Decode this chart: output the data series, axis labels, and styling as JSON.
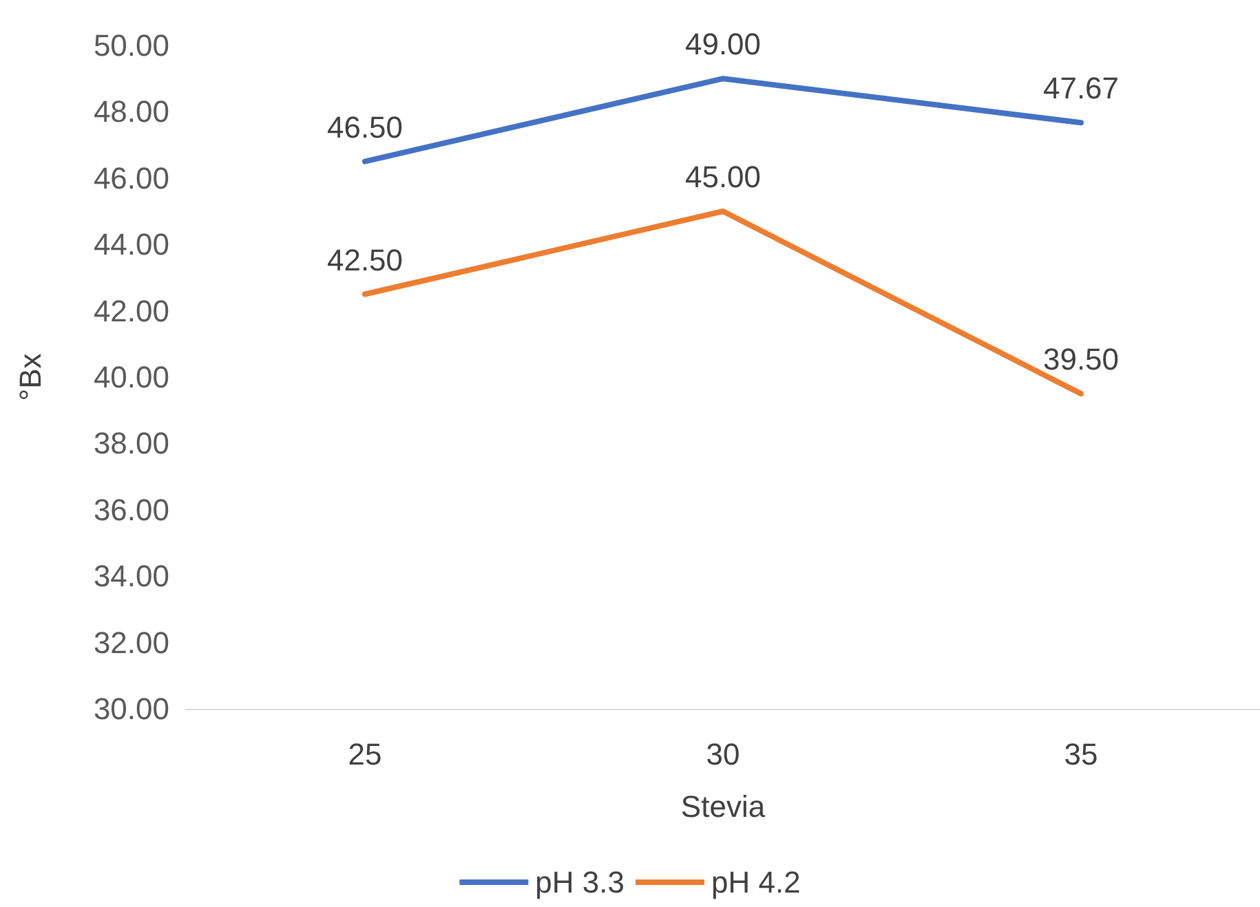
{
  "chart_data": {
    "type": "line",
    "xlabel": "Stevia",
    "ylabel": "°Bx",
    "categories": [
      "25",
      "30",
      "35"
    ],
    "series": [
      {
        "name": "pH 3.3",
        "color": "#4472c4",
        "values": [
          46.5,
          49.0,
          47.67
        ],
        "value_labels": [
          "46.50",
          "49.00",
          "47.67"
        ]
      },
      {
        "name": "pH 4.2",
        "color": "#ed7d31",
        "values": [
          42.5,
          45.0,
          39.5
        ],
        "value_labels": [
          "42.50",
          "45.00",
          "39.50"
        ]
      }
    ],
    "ylim": [
      30,
      50
    ],
    "yticks": [
      {
        "value": 30,
        "label": "30.00"
      },
      {
        "value": 32,
        "label": "32.00"
      },
      {
        "value": 34,
        "label": "34.00"
      },
      {
        "value": 36,
        "label": "36.00"
      },
      {
        "value": 38,
        "label": "38.00"
      },
      {
        "value": 40,
        "label": "40.00"
      },
      {
        "value": 42,
        "label": "42.00"
      },
      {
        "value": 44,
        "label": "44.00"
      },
      {
        "value": 46,
        "label": "46.00"
      },
      {
        "value": 48,
        "label": "48.00"
      },
      {
        "value": 50,
        "label": "50.00"
      }
    ],
    "grid": false,
    "legend": "bottom",
    "marker": "none",
    "line_style": "solid"
  }
}
